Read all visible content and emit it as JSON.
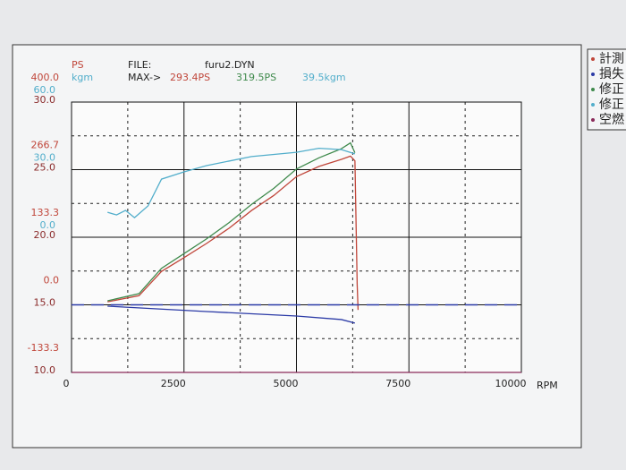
{
  "chart_data": {
    "type": "line",
    "header": {
      "file_label": "FILE:",
      "file": "furu2.DYN",
      "max_label": "MAX->",
      "max": [
        {
          "text": "293.4PS",
          "color": "#c0463a"
        },
        {
          "text": "319.5PS",
          "color": "#3f8a4c"
        },
        {
          "text": "39.5kgm",
          "color": "#52aecb"
        }
      ]
    },
    "ylabel": "PS",
    "ylabel_color": "#c0463a",
    "y2label": "kgm",
    "y2label_color": "#52aecb",
    "xlabel": "RPM",
    "xlim": [
      0,
      10000
    ],
    "xticks": [
      0,
      2500,
      5000,
      7500,
      10000
    ],
    "xminor": [
      1250,
      3750,
      6250,
      8750
    ],
    "ylim": [
      -133.3,
      400
    ],
    "yticks": [
      {
        "value": 400,
        "label": "400.0"
      },
      266.7,
      133.3,
      {
        "value": 0,
        "label": "0.0"
      },
      -133.3
    ],
    "y2lim": [
      -60,
      60
    ],
    "y2ticks": [
      {
        "value": 60,
        "label": "60.0"
      },
      {
        "value": 30,
        "label": "30.0"
      },
      {
        "value": 0,
        "label": "0.0"
      }
    ],
    "y3lim": [
      10,
      30
    ],
    "y3ticks": [
      {
        "value": 30,
        "label": "30.0"
      },
      {
        "value": 25,
        "label": "25.0"
      },
      {
        "value": 20,
        "label": "20.0"
      },
      {
        "value": 15,
        "label": "15.0"
      },
      {
        "value": 10,
        "label": "10.0"
      }
    ],
    "y3minor": [
      27.5,
      22.5,
      17.5,
      12.5
    ],
    "y3tick_color": "#8a2a2a",
    "grid": true,
    "series": [
      {
        "name": "計測",
        "color": "#c0463a",
        "axis": "y",
        "x": [
          800,
          1500,
          2000,
          2500,
          3000,
          3500,
          4000,
          4500,
          5000,
          5500,
          6000,
          6200,
          6300,
          6350,
          6370
        ],
        "values": [
          6,
          18,
          66,
          93,
          121,
          151,
          186,
          216,
          253,
          273,
          287,
          293.4,
          284,
          40,
          -10
        ]
      },
      {
        "name": "損失",
        "color": "#2b3aa6",
        "axis": "y",
        "x": [
          800,
          3000,
          5000,
          6000,
          6300
        ],
        "values": [
          -2.6,
          -13.2,
          -22,
          -29,
          -36
        ]
      },
      {
        "name": "修正",
        "color": "#3f8a4c",
        "axis": "y",
        "x": [
          800,
          1500,
          2000,
          2500,
          3000,
          3500,
          4000,
          4500,
          5000,
          5500,
          6000,
          6200,
          6300
        ],
        "values": [
          8,
          22,
          72,
          101,
          130,
          162,
          198,
          230,
          268,
          290,
          308,
          319.5,
          300
        ]
      },
      {
        "name": "修正",
        "color": "#52aecb",
        "axis": "y2",
        "x": [
          800,
          1000,
          1200,
          1400,
          1700,
          2000,
          2500,
          3000,
          3500,
          4000,
          5000,
          5500,
          6000,
          6300
        ],
        "values": [
          11.1,
          9.9,
          11.9,
          8.7,
          13.9,
          25.8,
          29,
          31.8,
          33.8,
          35.8,
          37.7,
          39.5,
          38.9,
          37
        ]
      },
      {
        "name": "空燃",
        "color": "#8a2a5a",
        "axis": "y3",
        "x": [
          0,
          10000
        ],
        "values": [
          10,
          10
        ]
      },
      {
        "color": "#2b3aa6",
        "axis": "y3",
        "dash": true,
        "x": [
          0,
          10000
        ],
        "values": [
          15,
          15
        ]
      }
    ]
  }
}
